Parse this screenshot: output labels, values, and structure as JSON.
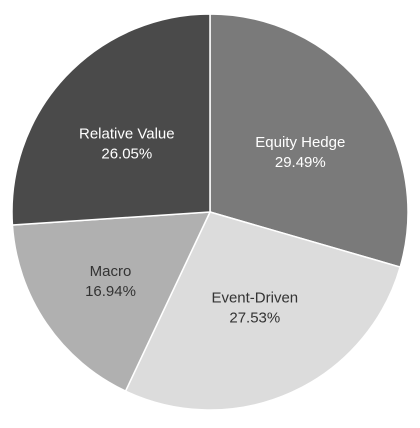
{
  "chart_data": {
    "type": "pie",
    "title": "",
    "slices": [
      {
        "label": "Equity Hedge",
        "value_text": "29.49%",
        "value": 29.49,
        "color": "#7a7a7a",
        "text_color": "#ffffff"
      },
      {
        "label": "Event-Driven",
        "value_text": "27.53%",
        "value": 27.53,
        "color": "#dcdcdc",
        "text_color": "#333333"
      },
      {
        "label": "Macro",
        "value_text": "16.94%",
        "value": 16.94,
        "color": "#b0b0b0",
        "text_color": "#333333"
      },
      {
        "label": "Relative Value",
        "value_text": "26.05%",
        "value": 26.05,
        "color": "#4a4a4a",
        "text_color": "#ffffff"
      }
    ],
    "start_angle": "12 o'clock",
    "direction": "clockwise"
  }
}
